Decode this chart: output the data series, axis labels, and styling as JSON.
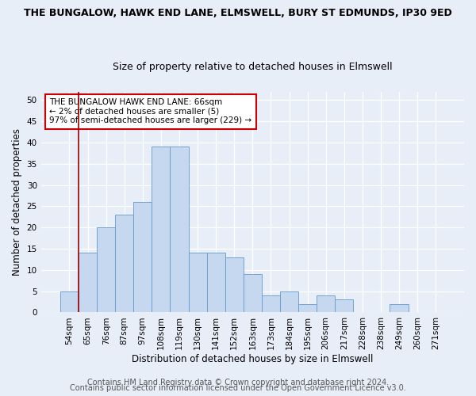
{
  "title": "THE BUNGALOW, HAWK END LANE, ELMSWELL, BURY ST EDMUNDS, IP30 9ED",
  "subtitle": "Size of property relative to detached houses in Elmswell",
  "xlabel": "Distribution of detached houses by size in Elmswell",
  "ylabel": "Number of detached properties",
  "bar_labels": [
    "54sqm",
    "65sqm",
    "76sqm",
    "87sqm",
    "97sqm",
    "108sqm",
    "119sqm",
    "130sqm",
    "141sqm",
    "152sqm",
    "163sqm",
    "173sqm",
    "184sqm",
    "195sqm",
    "206sqm",
    "217sqm",
    "228sqm",
    "238sqm",
    "249sqm",
    "260sqm",
    "271sqm"
  ],
  "bar_heights": [
    5,
    14,
    20,
    23,
    26,
    39,
    39,
    14,
    14,
    13,
    9,
    4,
    5,
    2,
    4,
    3,
    0,
    0,
    2,
    0,
    0
  ],
  "bar_color": "#c5d8f0",
  "bar_edge_color": "#6699cc",
  "vline_color": "#990000",
  "ylim": [
    0,
    52
  ],
  "yticks": [
    0,
    5,
    10,
    15,
    20,
    25,
    30,
    35,
    40,
    45,
    50
  ],
  "annotation_text": "THE BUNGALOW HAWK END LANE: 66sqm\n← 2% of detached houses are smaller (5)\n97% of semi-detached houses are larger (229) →",
  "annotation_box_color": "#ffffff",
  "annotation_box_edgecolor": "#cc0000",
  "footer1": "Contains HM Land Registry data © Crown copyright and database right 2024.",
  "footer2": "Contains public sector information licensed under the Open Government Licence v3.0.",
  "bg_color": "#e8eef8",
  "plot_bg_color": "#e8eef8",
  "grid_color": "#ffffff",
  "title_fontsize": 9,
  "subtitle_fontsize": 9,
  "xlabel_fontsize": 8.5,
  "ylabel_fontsize": 8.5,
  "tick_fontsize": 7.5,
  "annotation_fontsize": 7.5,
  "footer_fontsize": 7
}
